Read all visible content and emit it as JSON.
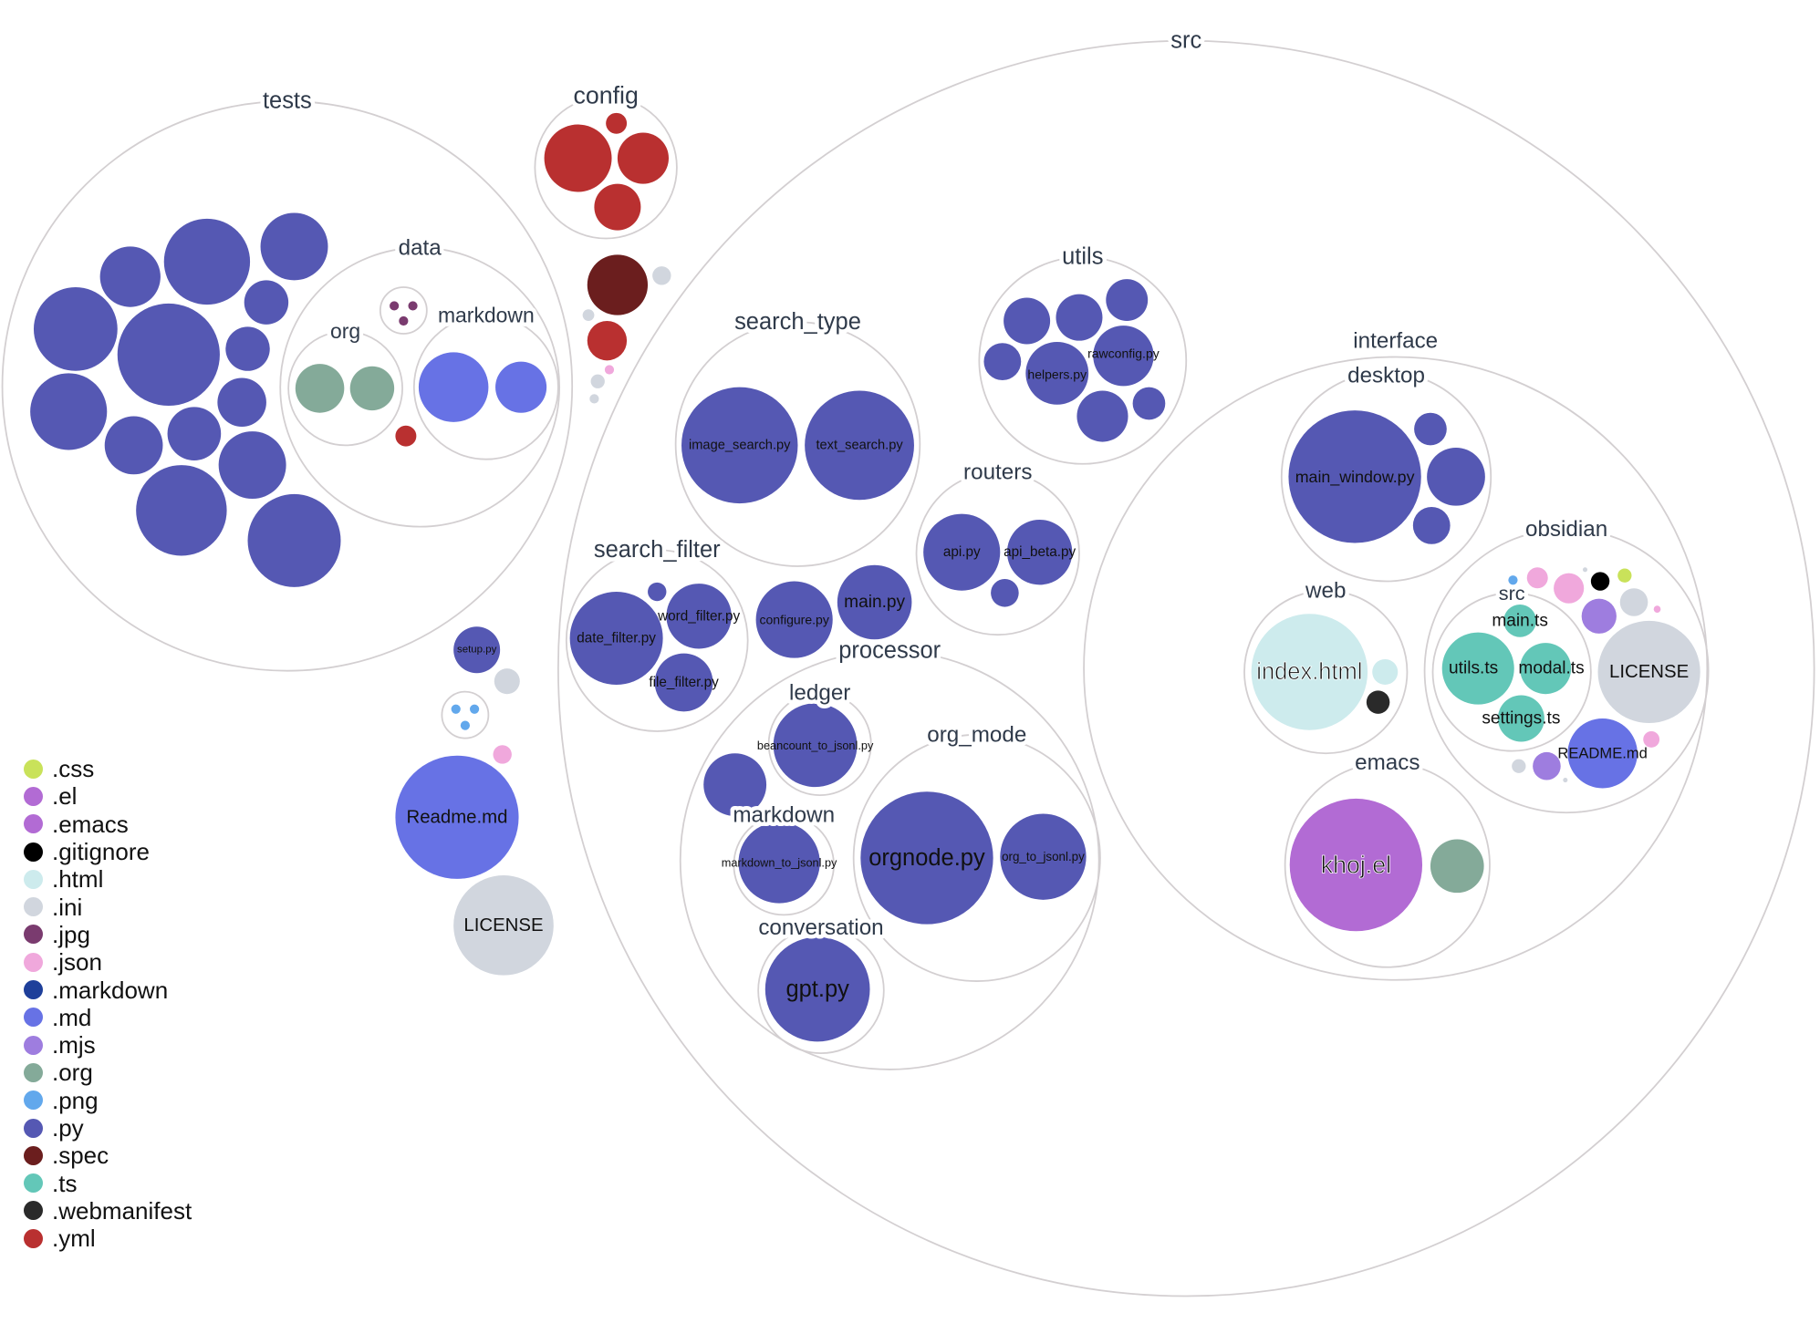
{
  "folders": [
    {
      "name": "tests"
    },
    {
      "name": "data"
    },
    {
      "name": "org"
    },
    {
      "name": "markdown"
    },
    {
      "name": ""
    },
    {
      "name": "config"
    },
    {
      "name": "src"
    },
    {
      "name": "search_type"
    },
    {
      "name": "utils"
    },
    {
      "name": "routers"
    },
    {
      "name": "search_filter"
    },
    {
      "name": "processor"
    },
    {
      "name": "ledger"
    },
    {
      "name": "markdown"
    },
    {
      "name": "org_mode"
    },
    {
      "name": "conversation"
    },
    {
      "name": "interface"
    },
    {
      "name": "desktop"
    },
    {
      "name": "web"
    },
    {
      "name": "obsidian"
    },
    {
      "name": "src"
    },
    {
      "name": "emacs"
    },
    {
      "name": ""
    }
  ],
  "files": [
    {
      "ext": ".py"
    },
    {
      "ext": ".py"
    },
    {
      "ext": ".py"
    },
    {
      "ext": ".py"
    },
    {
      "ext": ".py"
    },
    {
      "ext": ".py"
    },
    {
      "ext": ".py"
    },
    {
      "ext": ".py"
    },
    {
      "ext": ".py"
    },
    {
      "ext": ".py"
    },
    {
      "ext": ".py"
    },
    {
      "ext": ".py"
    },
    {
      "ext": ".py"
    },
    {
      "ext": ".py"
    },
    {
      "ext": ".org"
    },
    {
      "ext": ".org"
    },
    {
      "ext": ".md"
    },
    {
      "ext": ".md"
    },
    {
      "ext": ".jpg"
    },
    {
      "ext": ".jpg"
    },
    {
      "ext": ".jpg"
    },
    {
      "ext": ".yml"
    },
    {
      "ext": ".yml"
    },
    {
      "ext": ".yml"
    },
    {
      "ext": ".yml"
    },
    {
      "ext": ".yml"
    },
    {
      "ext": ".spec"
    },
    {
      "ext": ".ini"
    },
    {
      "ext": ".ini"
    },
    {
      "ext": ".yml"
    },
    {
      "ext": ".json"
    },
    {
      "ext": ".ini"
    },
    {
      "ext": ".ini"
    },
    {
      "name": "setup.py",
      "ext": ".py"
    },
    {
      "ext": ".ini"
    },
    {
      "ext": ".png"
    },
    {
      "ext": ".png"
    },
    {
      "ext": ".png"
    },
    {
      "ext": ".json"
    },
    {
      "name": "Readme.md",
      "ext": ".md"
    },
    {
      "name": "LICENSE",
      "ext": ".ini"
    },
    {
      "name": "image_search.py",
      "ext": ".py"
    },
    {
      "name": "text_search.py",
      "ext": ".py"
    },
    {
      "ext": ".py"
    },
    {
      "ext": ".py"
    },
    {
      "ext": ".py"
    },
    {
      "ext": ".py"
    },
    {
      "name": "helpers.py",
      "ext": ".py"
    },
    {
      "name": "rawconfig.py",
      "ext": ".py"
    },
    {
      "ext": ".py"
    },
    {
      "ext": ".py"
    },
    {
      "name": "api.py",
      "ext": ".py"
    },
    {
      "name": "api_beta.py",
      "ext": ".py"
    },
    {
      "ext": ".py"
    },
    {
      "name": "date_filter.py",
      "ext": ".py"
    },
    {
      "name": "word_filter.py",
      "ext": ".py"
    },
    {
      "name": "file_filter.py",
      "ext": ".py"
    },
    {
      "ext": ".py"
    },
    {
      "name": "configure.py",
      "ext": ".py"
    },
    {
      "name": "main.py",
      "ext": ".py"
    },
    {
      "name": "beancount_to_jsonl.py",
      "ext": ".py"
    },
    {
      "ext": ".py"
    },
    {
      "name": "markdown_to_jsonl.py",
      "ext": ".py"
    },
    {
      "name": "orgnode.py",
      "ext": ".py"
    },
    {
      "name": "org_to_jsonl.py",
      "ext": ".py"
    },
    {
      "name": "gpt.py",
      "ext": ".py"
    },
    {
      "name": "main_window.py",
      "ext": ".py"
    },
    {
      "ext": ".py"
    },
    {
      "ext": ".py"
    },
    {
      "ext": ".py"
    },
    {
      "name": "index.html",
      "ext": ".html"
    },
    {
      "ext": ".html"
    },
    {
      "ext": ".webmanifest"
    },
    {
      "ext": ".png"
    },
    {
      "ext": ".json"
    },
    {
      "ext": ".json"
    },
    {
      "ext": ".ini"
    },
    {
      "ext": ".gitignore"
    },
    {
      "ext": ".css"
    },
    {
      "ext": ".mjs"
    },
    {
      "ext": ".ini"
    },
    {
      "ext": ".json"
    },
    {
      "name": "LICENSE",
      "ext": ".ini"
    },
    {
      "name": "README.md",
      "ext": ".md"
    },
    {
      "ext": ".json"
    },
    {
      "ext": ".ini"
    },
    {
      "ext": ".mjs"
    },
    {
      "ext": ".ini"
    },
    {
      "name": "main.ts",
      "ext": ".ts"
    },
    {
      "name": "utils.ts",
      "ext": ".ts"
    },
    {
      "name": "modal.ts",
      "ext": ".ts"
    },
    {
      "name": "settings.ts",
      "ext": ".ts"
    },
    {
      "name": "khoj.el",
      "ext": ".el"
    },
    {
      "ext": ".org"
    }
  ],
  "legend": [
    {
      "label": ".css",
      "color": "#c9e25a"
    },
    {
      "label": ".el",
      "color": "#b26bd4"
    },
    {
      "label": ".emacs",
      "color": "#b26bd4"
    },
    {
      "label": ".gitignore",
      "color": "#000000"
    },
    {
      "label": ".html",
      "color": "#cdebed"
    },
    {
      "label": ".ini",
      "color": "#d1d6de"
    },
    {
      "label": ".jpg",
      "color": "#7a3b6f"
    },
    {
      "label": ".json",
      "color": "#f0a8dc"
    },
    {
      "label": ".markdown",
      "color": "#1e3f9a"
    },
    {
      "label": ".md",
      "color": "#6772e5"
    },
    {
      "label": ".mjs",
      "color": "#9e7ddf"
    },
    {
      "label": ".org",
      "color": "#84aa99"
    },
    {
      "label": ".png",
      "color": "#62a8ec"
    },
    {
      "label": ".py",
      "color": "#5558b3"
    },
    {
      "label": ".spec",
      "color": "#6b1e1e"
    },
    {
      "label": ".ts",
      "color": "#63c7b8"
    },
    {
      "label": ".webmanifest",
      "color": "#2a2a2a"
    },
    {
      "label": ".yml",
      "color": "#b93030"
    }
  ]
}
